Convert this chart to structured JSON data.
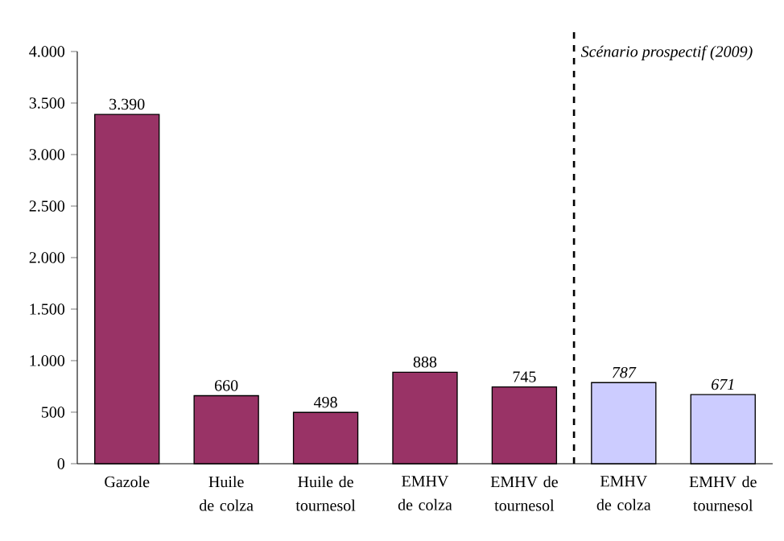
{
  "chart_data": {
    "type": "bar",
    "categories": [
      "Gazole",
      "Huile de colza",
      "Huile de tournesol",
      "EMHV de colza",
      "EMHV de tournesol",
      "EMHV de colza",
      "EMHV de tournesol"
    ],
    "values": [
      3390,
      660,
      498,
      888,
      745,
      787,
      671
    ],
    "colors": [
      "#993366",
      "#993366",
      "#993366",
      "#993366",
      "#993366",
      "#ccccff",
      "#ccccff"
    ],
    "value_labels": [
      "3.390",
      "660",
      "498",
      "888",
      "745",
      "787",
      "671"
    ],
    "ylim": [
      0,
      4000
    ],
    "yticks": [
      {
        "value": 0,
        "label": "0"
      },
      {
        "value": 500,
        "label": "500"
      },
      {
        "value": 1000,
        "label": "1.000"
      },
      {
        "value": 1500,
        "label": "1.500"
      },
      {
        "value": 2000,
        "label": "2.000"
      },
      {
        "value": 2500,
        "label": "2.500"
      },
      {
        "value": 3000,
        "label": "3.000"
      },
      {
        "value": 3500,
        "label": "3.500"
      },
      {
        "value": 4000,
        "label": "4.000"
      }
    ],
    "annotations": [
      "Scénario prospectif (2009)"
    ],
    "grid": false
  }
}
